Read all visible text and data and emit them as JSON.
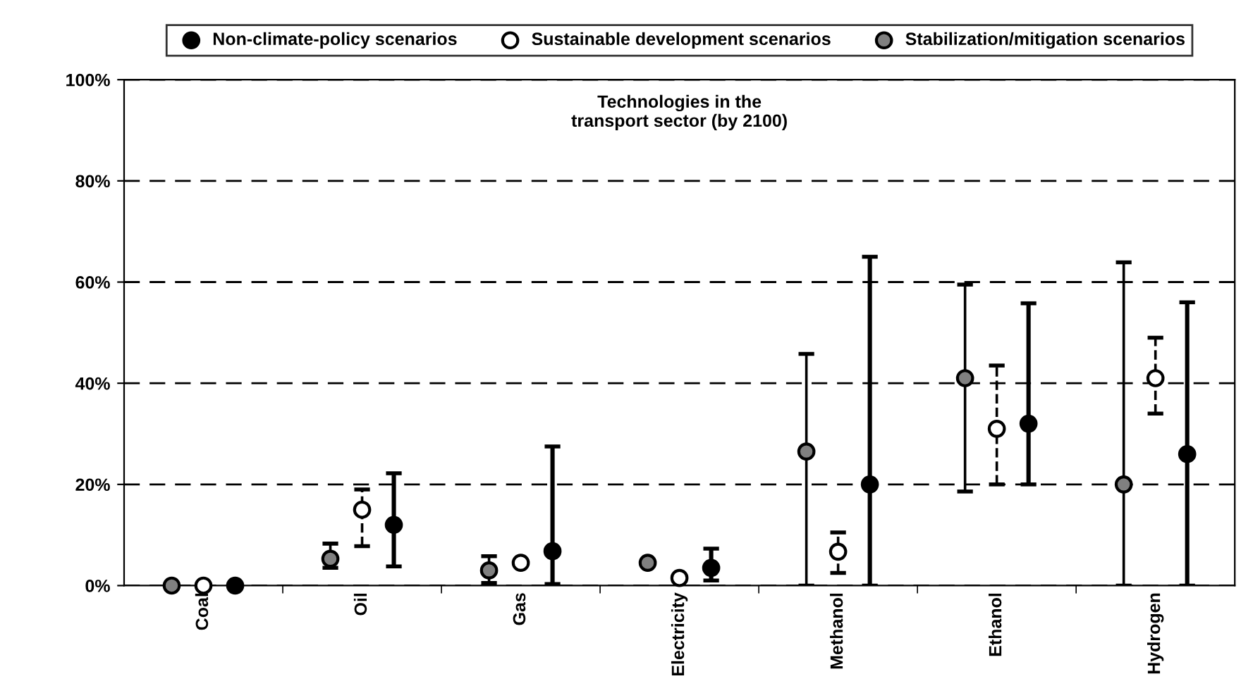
{
  "chart_data": {
    "type": "scatter",
    "title": "Technologies in the\ntransport sector (by 2100)",
    "categories": [
      "Coal",
      "Oil",
      "Gas",
      "Electricity",
      "Methanol",
      "Ethanol",
      "Hydrogen"
    ],
    "series": [
      {
        "name": "Stabilization/mitigation scenarios",
        "color": "#808080",
        "line_style": "solid",
        "values": [
          0,
          5.3,
          3,
          4.5,
          26.5,
          41,
          20
        ],
        "errors": [
          null,
          [
            3.5,
            8.3
          ],
          [
            0.5,
            5.8
          ],
          null,
          [
            0,
            45.8
          ],
          [
            18.6,
            59.5
          ],
          [
            0,
            63.9
          ]
        ]
      },
      {
        "name": "Sustainable development scenarios",
        "color": "#ffffff",
        "line_style": "dashed",
        "values": [
          0,
          15,
          4.5,
          1.5,
          6.7,
          31,
          41
        ],
        "errors": [
          null,
          [
            7.8,
            19
          ],
          null,
          null,
          [
            2.5,
            10.5
          ],
          [
            20,
            43.5
          ],
          [
            34,
            49
          ]
        ]
      },
      {
        "name": "Non-climate-policy scenarios",
        "color": "#000000",
        "line_style": "solid",
        "values": [
          0,
          12,
          6.8,
          3.5,
          20,
          32,
          26
        ],
        "errors": [
          null,
          [
            3.8,
            22.2
          ],
          [
            0.3,
            27.5
          ],
          [
            1,
            7.3
          ],
          [
            0,
            65
          ],
          [
            20,
            55.8
          ],
          [
            0,
            56
          ]
        ]
      }
    ],
    "ylim": [
      0,
      100
    ],
    "yticks": [
      {
        "value": 0,
        "label": "0%"
      },
      {
        "value": 20,
        "label": "20%"
      },
      {
        "value": 40,
        "label": "40%"
      },
      {
        "value": 60,
        "label": "60%"
      },
      {
        "value": 80,
        "label": "80%"
      },
      {
        "value": 100,
        "label": "100%"
      }
    ],
    "grid": "y",
    "legend": "top",
    "marker": "circle"
  }
}
